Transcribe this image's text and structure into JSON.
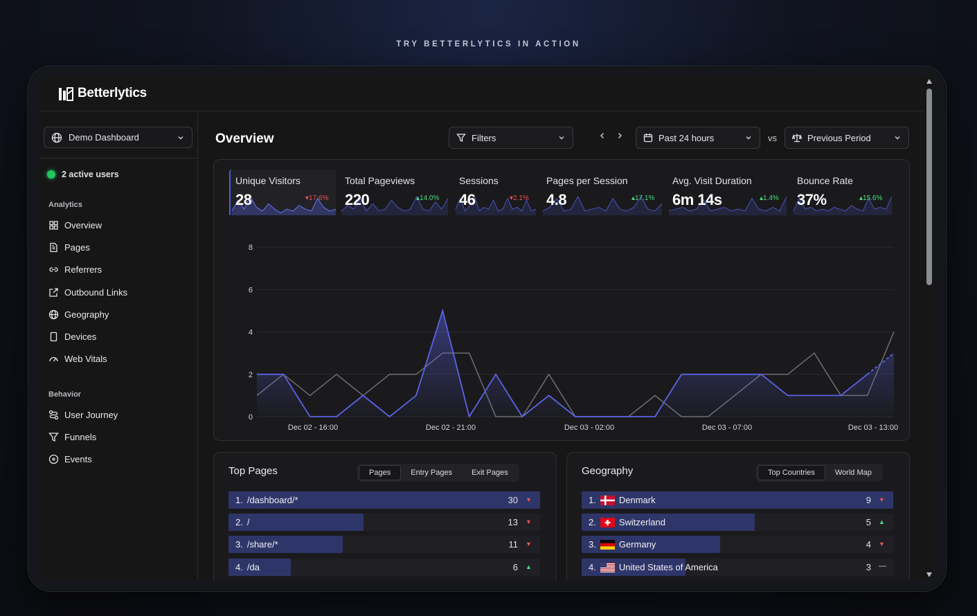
{
  "tagline": "TRY BETTERLYTICS IN ACTION",
  "app": {
    "name": "Betterlytics"
  },
  "sidebar": {
    "dashboard_select": "Demo Dashboard",
    "active_users": "2 active users",
    "analytics_label": "Analytics",
    "analytics_items": [
      {
        "label": "Overview",
        "icon": "grid-icon"
      },
      {
        "label": "Pages",
        "icon": "file-icon"
      },
      {
        "label": "Referrers",
        "icon": "link-icon"
      },
      {
        "label": "Outbound Links",
        "icon": "external-link-icon"
      },
      {
        "label": "Geography",
        "icon": "globe-icon"
      },
      {
        "label": "Devices",
        "icon": "device-icon"
      },
      {
        "label": "Web Vitals",
        "icon": "gauge-icon"
      }
    ],
    "behavior_label": "Behavior",
    "behavior_items": [
      {
        "label": "User Journey",
        "icon": "route-icon"
      },
      {
        "label": "Funnels",
        "icon": "funnel-icon"
      },
      {
        "label": "Events",
        "icon": "target-icon"
      }
    ]
  },
  "header": {
    "title": "Overview",
    "filters": "Filters",
    "range": "Past 24 hours",
    "vs": "vs",
    "compare": "Previous Period"
  },
  "kpis": [
    {
      "label": "Unique Visitors",
      "value": "28",
      "delta": "17.6%",
      "direction": "down"
    },
    {
      "label": "Total Pageviews",
      "value": "220",
      "delta": "14.0%",
      "direction": "up"
    },
    {
      "label": "Sessions",
      "value": "46",
      "delta": "2.1%",
      "direction": "down"
    },
    {
      "label": "Pages per Session",
      "value": "4.8",
      "delta": "17.1%",
      "direction": "up"
    },
    {
      "label": "Avg. Visit Duration",
      "value": "6m 14s",
      "delta": "1.4%",
      "direction": "up"
    },
    {
      "label": "Bounce Rate",
      "value": "37%",
      "delta": "15.6%",
      "direction": "up"
    }
  ],
  "chart_data": {
    "type": "line",
    "title": "",
    "ylim": [
      0,
      8
    ],
    "yticks": [
      "0",
      "2",
      "4",
      "6",
      "8"
    ],
    "xtick_labels": [
      "Dec 02 - 16:00",
      "Dec 02 - 21:00",
      "Dec 03 - 02:00",
      "Dec 03 - 07:00",
      "Dec 03 - 13:00"
    ],
    "series": [
      {
        "values": [
          2,
          2,
          0,
          0,
          1,
          0,
          1,
          5,
          0,
          2,
          0,
          1,
          0,
          0,
          0,
          0,
          2,
          2,
          2,
          2,
          1,
          1,
          1,
          2,
          3
        ],
        "color": "#5b63e6"
      },
      {
        "values": [
          1,
          2,
          1,
          2,
          1,
          2,
          2,
          3,
          3,
          0,
          0,
          2,
          0,
          0,
          0,
          1,
          0,
          0,
          1,
          2,
          2,
          3,
          1,
          1,
          4
        ],
        "color": "#6e6e74"
      }
    ],
    "grid": true
  },
  "top_pages": {
    "title": "Top Pages",
    "tabs": [
      "Pages",
      "Entry Pages",
      "Exit Pages"
    ],
    "rows": [
      {
        "rank": "1.",
        "label": "/dashboard/*",
        "count": "30",
        "trend": "down",
        "share": 1.0
      },
      {
        "rank": "2.",
        "label": "/",
        "count": "13",
        "trend": "down",
        "share": 0.433
      },
      {
        "rank": "3.",
        "label": "/share/*",
        "count": "11",
        "trend": "down",
        "share": 0.367
      },
      {
        "rank": "4.",
        "label": "/da",
        "count": "6",
        "trend": "up",
        "share": 0.2
      }
    ]
  },
  "geography": {
    "title": "Geography",
    "tabs": [
      "Top Countries",
      "World Map"
    ],
    "rows": [
      {
        "rank": "1.",
        "label": "Denmark",
        "flag": "dk",
        "count": "9",
        "trend": "down",
        "share": 1.0
      },
      {
        "rank": "2.",
        "label": "Switzerland",
        "flag": "ch",
        "count": "5",
        "trend": "up",
        "share": 0.556
      },
      {
        "rank": "3.",
        "label": "Germany",
        "flag": "de",
        "count": "4",
        "trend": "down",
        "share": 0.444
      },
      {
        "rank": "4.",
        "label": "United States of America",
        "flag": "us",
        "count": "3",
        "trend": "flat",
        "share": 0.333
      }
    ]
  }
}
